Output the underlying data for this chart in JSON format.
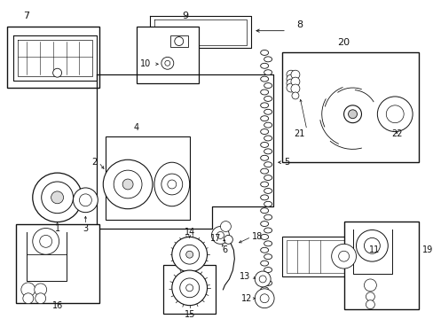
{
  "bg_color": "#ffffff",
  "line_color": "#111111",
  "figsize": [
    4.89,
    3.6
  ],
  "dpi": 100
}
